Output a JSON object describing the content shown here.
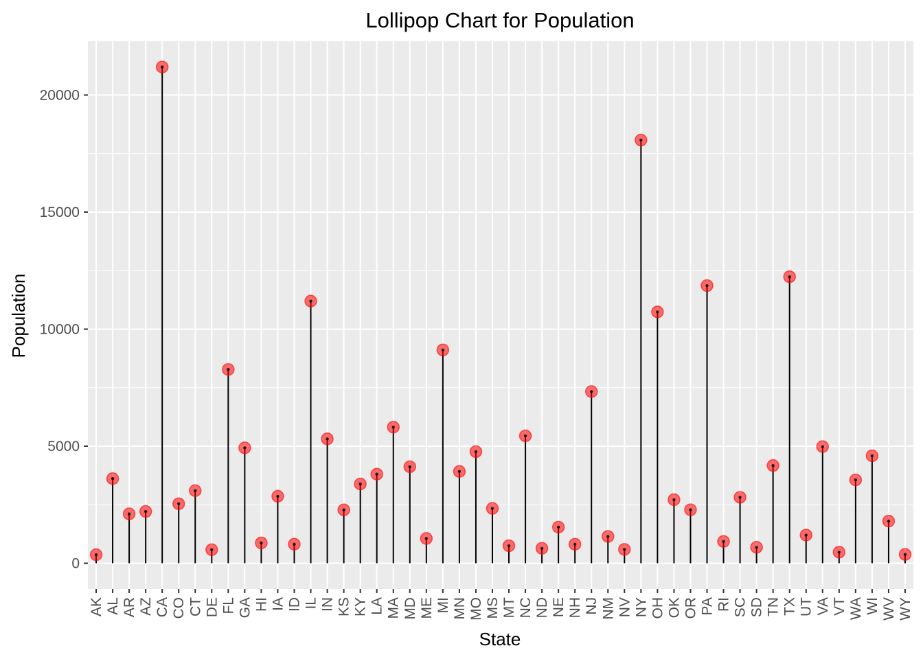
{
  "chart_data": {
    "type": "lollipop",
    "title": "Lollipop Chart for Population",
    "xlabel": "State",
    "ylabel": "Population",
    "ylim": [
      -1100,
      22300
    ],
    "yticks": [
      0,
      5000,
      10000,
      15000,
      20000
    ],
    "ytick_labels": [
      "0",
      "5000",
      "10000",
      "15000",
      "20000"
    ],
    "grid": true,
    "colors": {
      "panel": "#EBEBEB",
      "grid": "#FFFFFF",
      "stem": "#000000",
      "point": "#FF0000"
    },
    "categories": [
      "AK",
      "AL",
      "AR",
      "AZ",
      "CA",
      "CO",
      "CT",
      "DE",
      "FL",
      "GA",
      "HI",
      "IA",
      "ID",
      "IL",
      "IN",
      "KS",
      "KY",
      "LA",
      "MA",
      "MD",
      "ME",
      "MI",
      "MN",
      "MO",
      "MS",
      "MT",
      "NC",
      "ND",
      "NE",
      "NH",
      "NJ",
      "NM",
      "NV",
      "NY",
      "OH",
      "OK",
      "OR",
      "PA",
      "RI",
      "SC",
      "SD",
      "TN",
      "TX",
      "UT",
      "VA",
      "VT",
      "WA",
      "WI",
      "WV",
      "WY"
    ],
    "values": [
      365,
      3615,
      2110,
      2212,
      21198,
      2541,
      3100,
      579,
      8277,
      4931,
      868,
      2861,
      813,
      11197,
      5313,
      2280,
      3387,
      3806,
      5814,
      4122,
      1058,
      9111,
      3921,
      4767,
      2341,
      746,
      5441,
      637,
      1544,
      812,
      7333,
      1144,
      590,
      18076,
      10735,
      2715,
      2284,
      11860,
      931,
      2816,
      681,
      4173,
      12237,
      1203,
      4981,
      472,
      3559,
      4589,
      1799,
      376
    ]
  }
}
